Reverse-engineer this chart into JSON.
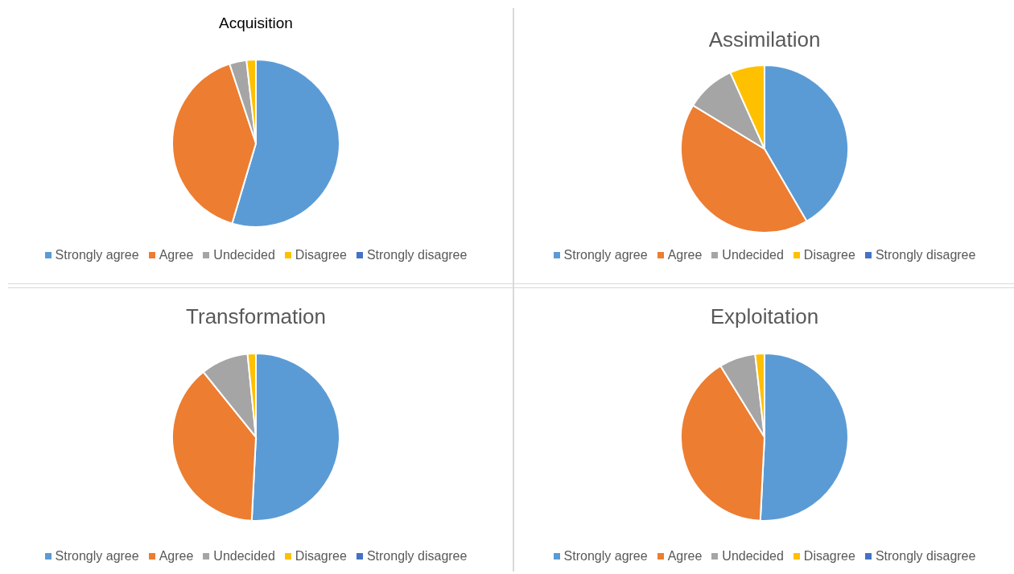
{
  "chart_data": [
    {
      "type": "pie",
      "title": "Acquisition",
      "categories": [
        "Strongly agree",
        "Agree",
        "Undecided",
        "Disagree",
        "Strongly disagree"
      ],
      "values": [
        54.6,
        40.3,
        3.3,
        1.8,
        0
      ],
      "colors": [
        "#5b9bd5",
        "#ed7d31",
        "#a5a5a5",
        "#ffc000",
        "#4472c4"
      ],
      "legend": "bottom"
    },
    {
      "type": "pie",
      "title": "Assimilation",
      "categories": [
        "Strongly agree",
        "Agree",
        "Undecided",
        "Disagree",
        "Strongly disagree"
      ],
      "values": [
        41.6,
        42.1,
        9.6,
        6.7,
        0
      ],
      "colors": [
        "#5b9bd5",
        "#ed7d31",
        "#a5a5a5",
        "#ffc000",
        "#4472c4"
      ],
      "legend": "bottom"
    },
    {
      "type": "pie",
      "title": "Transformation",
      "categories": [
        "Strongly agree",
        "Agree",
        "Undecided",
        "Disagree",
        "Strongly disagree"
      ],
      "values": [
        50.8,
        38.4,
        9.2,
        1.6,
        0
      ],
      "colors": [
        "#5b9bd5",
        "#ed7d31",
        "#a5a5a5",
        "#ffc000",
        "#4472c4"
      ],
      "legend": "bottom"
    },
    {
      "type": "pie",
      "title": "Exploitation",
      "categories": [
        "Strongly agree",
        "Agree",
        "Undecided",
        "Disagree",
        "Strongly disagree"
      ],
      "values": [
        50.8,
        40.4,
        7.0,
        1.8,
        0
      ],
      "colors": [
        "#5b9bd5",
        "#ed7d31",
        "#a5a5a5",
        "#ffc000",
        "#4472c4"
      ],
      "legend": "bottom"
    }
  ]
}
